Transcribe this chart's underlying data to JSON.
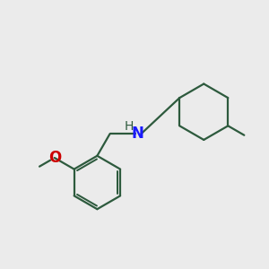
{
  "background_color": "#ebebeb",
  "bond_color": "#2d5a3d",
  "N_color": "#1a1aff",
  "O_color": "#cc0000",
  "line_width": 1.6,
  "font_size_N": 12,
  "font_size_H": 10,
  "font_size_O": 12,
  "fig_size": [
    3.0,
    3.0
  ],
  "dpi": 100,
  "xlim": [
    0,
    10
  ],
  "ylim": [
    0,
    10
  ]
}
